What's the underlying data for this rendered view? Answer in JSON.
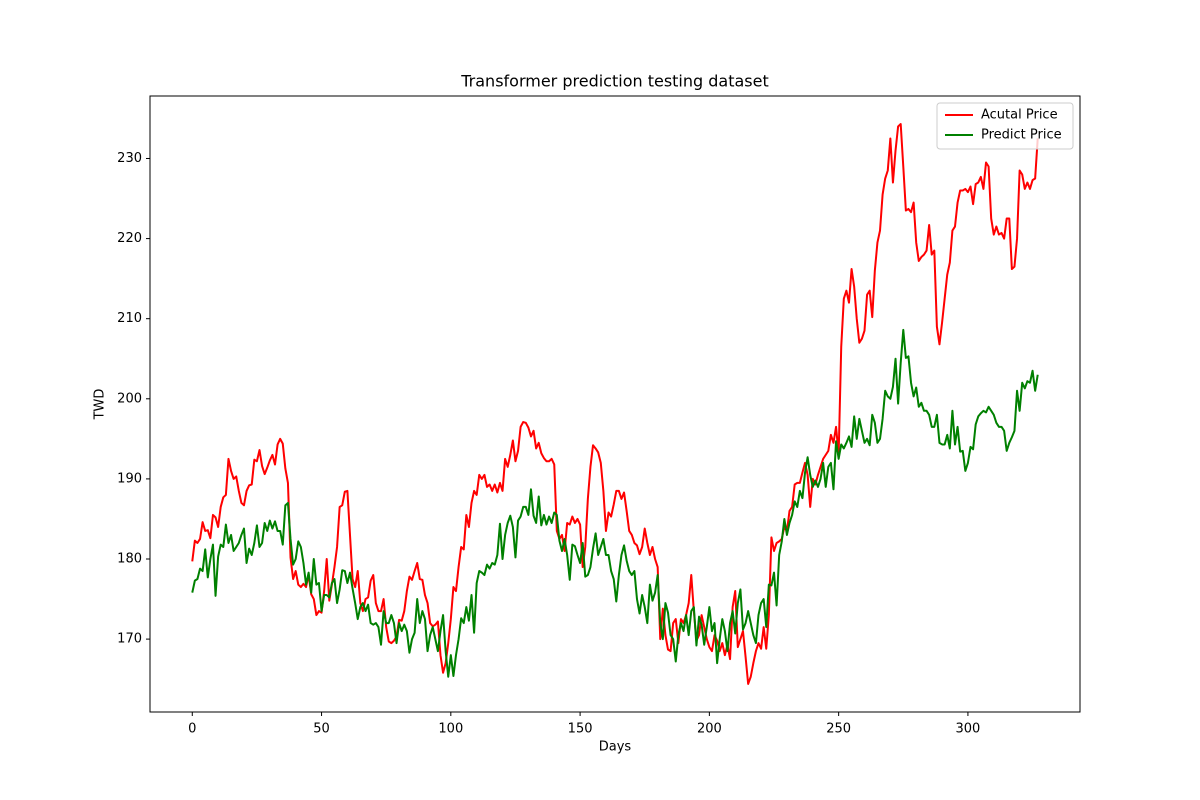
{
  "chart_data": {
    "type": "line",
    "title": "Transformer prediction testing dataset",
    "x_label": "Days",
    "y_label": "TWD",
    "xlim": [
      -16.35,
      343.35
    ],
    "ylim": [
      160.9,
      237.8
    ],
    "xticks": [
      0,
      50,
      100,
      150,
      200,
      250,
      300
    ],
    "yticks": [
      170,
      180,
      190,
      200,
      210,
      220,
      230
    ],
    "grid": false,
    "legend": "upper right",
    "x": [
      0,
      1,
      2,
      3,
      4,
      5,
      6,
      7,
      8,
      9,
      10,
      11,
      12,
      13,
      14,
      15,
      16,
      17,
      18,
      19,
      20,
      21,
      22,
      23,
      24,
      25,
      26,
      27,
      28,
      29,
      30,
      31,
      32,
      33,
      34,
      35,
      36,
      37,
      38,
      39,
      40,
      41,
      42,
      43,
      44,
      45,
      46,
      47,
      48,
      49,
      50,
      51,
      52,
      53,
      54,
      55,
      56,
      57,
      58,
      59,
      60,
      61,
      62,
      63,
      64,
      65,
      66,
      67,
      68,
      69,
      70,
      71,
      72,
      73,
      74,
      75,
      76,
      77,
      78,
      79,
      80,
      81,
      82,
      83,
      84,
      85,
      86,
      87,
      88,
      89,
      90,
      91,
      92,
      93,
      94,
      95,
      96,
      97,
      98,
      99,
      100,
      101,
      102,
      103,
      104,
      105,
      106,
      107,
      108,
      109,
      110,
      111,
      112,
      113,
      114,
      115,
      116,
      117,
      118,
      119,
      120,
      121,
      122,
      123,
      124,
      125,
      126,
      127,
      128,
      129,
      130,
      131,
      132,
      133,
      134,
      135,
      136,
      137,
      138,
      139,
      140,
      141,
      142,
      143,
      144,
      145,
      146,
      147,
      148,
      149,
      150,
      151,
      152,
      153,
      154,
      155,
      156,
      157,
      158,
      159,
      160,
      161,
      162,
      163,
      164,
      165,
      166,
      167,
      168,
      169,
      170,
      171,
      172,
      173,
      174,
      175,
      176,
      177,
      178,
      179,
      180,
      181,
      182,
      183,
      184,
      185,
      186,
      187,
      188,
      189,
      190,
      191,
      192,
      193,
      194,
      195,
      196,
      197,
      198,
      199,
      200,
      201,
      202,
      203,
      204,
      205,
      206,
      207,
      208,
      209,
      210,
      211,
      212,
      213,
      214,
      215,
      216,
      217,
      218,
      219,
      220,
      221,
      222,
      223,
      224,
      225,
      226,
      227,
      228,
      229,
      230,
      231,
      232,
      233,
      234,
      235,
      236,
      237,
      238,
      239,
      240,
      241,
      242,
      243,
      244,
      245,
      246,
      247,
      248,
      249,
      250,
      251,
      252,
      253,
      254,
      255,
      256,
      257,
      258,
      259,
      260,
      261,
      262,
      263,
      264,
      265,
      266,
      267,
      268,
      269,
      270,
      271,
      272,
      273,
      274,
      275,
      276,
      277,
      278,
      279,
      280,
      281,
      282,
      283,
      284,
      285,
      286,
      287,
      288,
      289,
      290,
      291,
      292,
      293,
      294,
      295,
      296,
      297,
      298,
      299,
      300,
      301,
      302,
      303,
      304,
      305,
      306,
      307,
      308,
      309,
      310,
      311,
      312,
      313,
      314,
      315,
      316,
      317,
      318,
      319,
      320,
      321,
      322,
      323,
      324,
      325,
      326,
      327
    ],
    "series": [
      {
        "name": "Acutal Price",
        "color": "#ff0000",
        "values": [
          179.7,
          182.3,
          182,
          182.5,
          184.6,
          183.5,
          183.6,
          182.6,
          185.5,
          185.2,
          184,
          186.5,
          187.7,
          188,
          192.5,
          191,
          190,
          190.3,
          188.5,
          187,
          186.7,
          188.5,
          189.2,
          189.3,
          192.4,
          192.2,
          193.6,
          191.6,
          190.6,
          191.4,
          192.3,
          193,
          191.8,
          194.3,
          195,
          194.4,
          191.3,
          189.5,
          180.2,
          177.5,
          178.5,
          176.8,
          176.5,
          176.9,
          176.5,
          178,
          175.6,
          175,
          173,
          173.5,
          173.3,
          176,
          180,
          174.8,
          176.8,
          179,
          181.5,
          186.5,
          186.7,
          188.4,
          188.5,
          183,
          177.5,
          176.5,
          178.5,
          174.5,
          173.5,
          175,
          175.2,
          177.3,
          178,
          174.5,
          173.5,
          173.5,
          175,
          171.5,
          169.7,
          169.5,
          169.8,
          170.3,
          172.4,
          172.3,
          173.5,
          176,
          177.8,
          177.4,
          178.5,
          179.5,
          177.5,
          177.4,
          175.5,
          174.5,
          172,
          171.6,
          171.8,
          172.2,
          168,
          165.8,
          167,
          169.5,
          172.5,
          176.5,
          176,
          179,
          181.5,
          181.2,
          185.5,
          184,
          187,
          188.5,
          188,
          190.5,
          190,
          190.5,
          189,
          189.3,
          188.5,
          189.3,
          188.3,
          189.5,
          188.5,
          192.5,
          191.5,
          193,
          194.8,
          192.2,
          193.5,
          196.5,
          197.1,
          197,
          196.4,
          195.3,
          196,
          193.8,
          194.5,
          193.2,
          192.6,
          192.2,
          192.2,
          192.5,
          191.8,
          183.5,
          182.5,
          183,
          181,
          184.5,
          184.3,
          185.3,
          184.5,
          185,
          184.3,
          179,
          181.5,
          187.5,
          191.5,
          194.2,
          193.8,
          193.3,
          192,
          188.5,
          183.5,
          185.8,
          185.3,
          186.8,
          188.5,
          188.5,
          187.5,
          188.3,
          186,
          183.5,
          183,
          182,
          181.7,
          180.6,
          181.5,
          183.8,
          182,
          180.5,
          181.5,
          180,
          179,
          170,
          173.8,
          170.5,
          168.7,
          168.5,
          172,
          172.5,
          169.5,
          172.5,
          172,
          173,
          174.5,
          178,
          173.5,
          169.8,
          170.5,
          173,
          171.5,
          170,
          169,
          168.5,
          170.5,
          169.8,
          168.5,
          169.5,
          168,
          169.3,
          167.5,
          174,
          176,
          169,
          170,
          171,
          167.8,
          164.4,
          165.3,
          167,
          168.5,
          169.5,
          168.8,
          171.5,
          168.8,
          173,
          182.7,
          181,
          182,
          182.2,
          182.5,
          184,
          183.5,
          186,
          186.5,
          189.3,
          189.5,
          189.5,
          190.8,
          192,
          190.5,
          186.5,
          190,
          189.3,
          190.5,
          191.5,
          192.5,
          193,
          193.5,
          195.5,
          194.5,
          196.5,
          193,
          206.5,
          212.5,
          213.5,
          212,
          216.2,
          214,
          210,
          207,
          207.5,
          208.5,
          213,
          213.5,
          210.2,
          216,
          219.5,
          221,
          225.5,
          227.5,
          228.5,
          232.5,
          227,
          231,
          234,
          234.3,
          229,
          223.5,
          223.7,
          223.3,
          224.5,
          219.5,
          217.2,
          217.7,
          218,
          218.5,
          221.7,
          218,
          218.5,
          209,
          206.8,
          209.5,
          212.5,
          215.5,
          217,
          221,
          221.5,
          224.5,
          226,
          226,
          226.2,
          225.8,
          226.5,
          224.3,
          226.8,
          227,
          227.7,
          226.2,
          229.5,
          229,
          222.5,
          220.5,
          221.5,
          220.5,
          220.7,
          220,
          222.5,
          222.5,
          216.2,
          216.5,
          220,
          228.5,
          228,
          226.2,
          227,
          226.2,
          227.3,
          227.5,
          232.5
        ]
      },
      {
        "name": "Predict Price",
        "color": "#008000",
        "values": [
          175.8,
          177.3,
          177.5,
          178.8,
          178.5,
          181.2,
          177.7,
          180,
          181.8,
          175.4,
          180.3,
          181.8,
          181.5,
          184.3,
          182,
          183,
          181,
          181.5,
          182,
          183,
          183.8,
          179.5,
          181.3,
          180.5,
          182,
          184.2,
          181.5,
          182,
          184.5,
          183.5,
          184.8,
          183.8,
          184.7,
          183.5,
          183.5,
          181.8,
          186.7,
          187,
          182.5,
          179.3,
          180,
          182.2,
          181.5,
          179.5,
          176.8,
          178.3,
          175.8,
          180,
          176.8,
          177,
          173.5,
          175.5,
          175.5,
          175.2,
          177,
          177.5,
          174.5,
          176.2,
          178.6,
          178.5,
          177,
          178.3,
          176.3,
          174.5,
          172.5,
          174,
          174.5,
          173.5,
          174.3,
          172,
          171.8,
          172,
          171.5,
          169.3,
          173.5,
          172,
          172,
          173,
          172,
          169.5,
          172,
          171,
          171.8,
          171,
          168.3,
          170,
          170.8,
          175,
          172,
          173.5,
          172.5,
          168.5,
          170.5,
          171.5,
          170,
          168.5,
          171,
          173,
          168.5,
          165.3,
          168,
          165.4,
          168,
          170,
          172.6,
          172,
          174,
          172.3,
          175.5,
          170.8,
          177,
          178.5,
          178.3,
          178,
          179.3,
          178.8,
          179.5,
          179.3,
          180.5,
          184.4,
          180,
          183,
          184.5,
          185.4,
          184,
          180.2,
          184.8,
          185.3,
          186.5,
          186.5,
          185.5,
          188.7,
          185.4,
          184.5,
          187.8,
          184.2,
          185.5,
          184.3,
          185.3,
          184.5,
          185.8,
          185.5,
          182.3,
          181,
          182.5,
          180.5,
          177.4,
          181.8,
          181.6,
          180.5,
          179.5,
          182,
          177.8,
          178,
          179,
          181.3,
          183.2,
          180.5,
          181.5,
          182.5,
          180.5,
          180.5,
          178.5,
          177.5,
          174.7,
          178,
          180.5,
          181.7,
          179.8,
          178.5,
          178,
          178.5,
          175,
          173.2,
          175.5,
          174,
          172,
          176.8,
          174.8,
          175.8,
          178,
          172,
          170,
          174.5,
          173.3,
          170.5,
          170,
          167.2,
          170.5,
          172,
          171,
          173,
          170.5,
          173.5,
          174,
          169.2,
          172.8,
          171.8,
          169.3,
          171.5,
          174,
          171,
          172,
          167,
          170,
          172.5,
          171,
          168.5,
          172,
          173.5,
          170.7,
          174.5,
          176.2,
          171.2,
          172,
          173.5,
          172,
          170.5,
          169.5,
          173,
          174.5,
          175,
          171.5,
          176.8,
          176.7,
          178.3,
          174.2,
          180.5,
          182.2,
          185,
          183,
          184.5,
          185.5,
          187.2,
          186.5,
          188.5,
          187.6,
          190.8,
          192.7,
          190.5,
          189,
          189.8,
          189,
          190,
          192,
          189,
          191.5,
          192,
          188.7,
          194.7,
          192.5,
          194.3,
          193.8,
          194.5,
          195.3,
          194,
          197.8,
          195,
          197.5,
          196,
          194.5,
          195,
          194.2,
          198,
          197,
          194.5,
          195,
          197.5,
          201,
          200.3,
          200,
          201.5,
          205,
          199.4,
          204.5,
          208.6,
          205.1,
          205.3,
          202,
          200.3,
          201.4,
          199,
          199.5,
          198.5,
          198.5,
          198,
          196.5,
          196.5,
          198,
          194.5,
          194.3,
          194.3,
          195.5,
          193.8,
          198.5,
          194.3,
          196.5,
          193.4,
          193.5,
          191,
          192,
          194,
          193.7,
          196.8,
          197.8,
          198.2,
          198.5,
          198.3,
          199,
          198.5,
          198,
          197,
          196.5,
          196.5,
          196,
          193.5,
          194.5,
          195.2,
          196,
          201,
          198.5,
          202,
          201.3,
          202.2,
          202,
          203.5,
          201,
          203
        ]
      }
    ]
  }
}
